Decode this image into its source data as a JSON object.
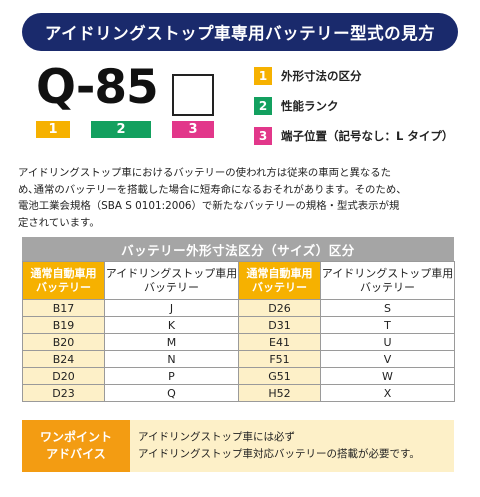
{
  "title": "アイドリングストップ車専用バッテリー型式の見方",
  "model": {
    "code": "Q-85",
    "tags": [
      "1",
      "2",
      "3"
    ]
  },
  "legend": [
    {
      "num": "1",
      "label": "外形寸法の区分",
      "color": "#f6b100"
    },
    {
      "num": "2",
      "label": "性能ランク",
      "color": "#13a05f"
    },
    {
      "num": "3",
      "label": "端子位置（記号なし：L タイプ）",
      "color": "#e2378a"
    }
  ],
  "description": [
    "アイドリングストップ車におけるバッテリーの使われ方は従来の車両と異なるた",
    "め､通常のバッテリーを搭載した場合に短寿命になるおそれがあります。そのため、",
    "電池工業会規格（SBA S 0101:2006）で新たなバッテリーの規格・型式表示が規",
    "定されています。"
  ],
  "table": {
    "title": "バッテリー外形寸法区分（サイズ）区分",
    "headers": {
      "standard": [
        "通常自動車用",
        "バッテリー"
      ],
      "idling": [
        "アイドリングストップ車用",
        "バッテリー"
      ]
    },
    "rows": [
      [
        "B17",
        "J",
        "D26",
        "S"
      ],
      [
        "B19",
        "K",
        "D31",
        "T"
      ],
      [
        "B20",
        "M",
        "E41",
        "U"
      ],
      [
        "B24",
        "N",
        "F51",
        "V"
      ],
      [
        "D20",
        "P",
        "G51",
        "W"
      ],
      [
        "D23",
        "Q",
        "H52",
        "X"
      ]
    ]
  },
  "advice": {
    "label": [
      "ワンポイント",
      "アドバイス"
    ],
    "lines": [
      "アイドリングストップ車には必ず",
      "アイドリングストップ車対応バッテリーの搭載が必要です。"
    ]
  }
}
